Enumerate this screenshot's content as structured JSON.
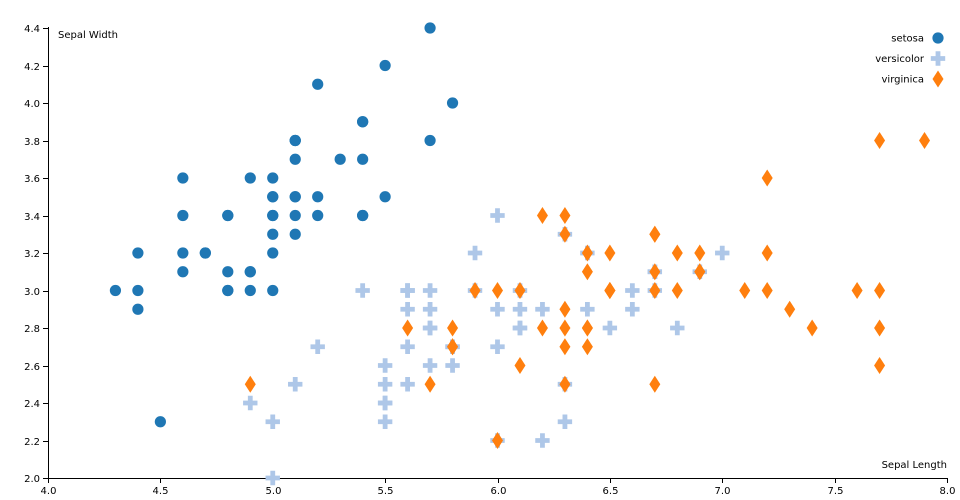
{
  "chart_data": {
    "type": "scatter",
    "title": "",
    "xlabel": "Sepal Length",
    "ylabel": "Sepal Width",
    "xlim": [
      4.0,
      8.0
    ],
    "ylim": [
      2.0,
      4.4
    ],
    "xticks": [
      "4.0",
      "4.5",
      "5.0",
      "5.5",
      "6.0",
      "6.5",
      "7.0",
      "7.5",
      "8.0"
    ],
    "yticks": [
      "2.0",
      "2.2",
      "2.4",
      "2.6",
      "2.8",
      "3.0",
      "3.2",
      "3.4",
      "3.6",
      "3.8",
      "4.0",
      "4.2",
      "4.4"
    ],
    "grid": false,
    "legend_position": "top-right",
    "series": [
      {
        "name": "setosa",
        "color": "#1f77b4",
        "marker": "circle",
        "points": [
          [
            5.1,
            3.5
          ],
          [
            4.9,
            3.0
          ],
          [
            4.7,
            3.2
          ],
          [
            4.6,
            3.1
          ],
          [
            5.0,
            3.6
          ],
          [
            5.4,
            3.9
          ],
          [
            4.6,
            3.4
          ],
          [
            5.0,
            3.4
          ],
          [
            4.4,
            2.9
          ],
          [
            4.9,
            3.1
          ],
          [
            5.4,
            3.7
          ],
          [
            4.8,
            3.4
          ],
          [
            4.8,
            3.0
          ],
          [
            4.3,
            3.0
          ],
          [
            5.8,
            4.0
          ],
          [
            5.7,
            4.4
          ],
          [
            5.4,
            3.9
          ],
          [
            5.1,
            3.5
          ],
          [
            5.7,
            3.8
          ],
          [
            5.1,
            3.8
          ],
          [
            5.4,
            3.4
          ],
          [
            5.1,
            3.7
          ],
          [
            4.6,
            3.6
          ],
          [
            5.1,
            3.3
          ],
          [
            4.8,
            3.4
          ],
          [
            5.0,
            3.0
          ],
          [
            5.0,
            3.4
          ],
          [
            5.2,
            3.5
          ],
          [
            5.2,
            3.4
          ],
          [
            4.7,
            3.2
          ],
          [
            4.8,
            3.1
          ],
          [
            5.4,
            3.4
          ],
          [
            5.2,
            4.1
          ],
          [
            5.5,
            4.2
          ],
          [
            4.9,
            3.1
          ],
          [
            5.0,
            3.2
          ],
          [
            5.5,
            3.5
          ],
          [
            4.9,
            3.6
          ],
          [
            4.4,
            3.0
          ],
          [
            5.1,
            3.4
          ],
          [
            5.0,
            3.5
          ],
          [
            4.5,
            2.3
          ],
          [
            4.4,
            3.2
          ],
          [
            5.0,
            3.5
          ],
          [
            5.1,
            3.8
          ],
          [
            4.8,
            3.0
          ],
          [
            5.1,
            3.8
          ],
          [
            4.6,
            3.2
          ],
          [
            5.3,
            3.7
          ],
          [
            5.0,
            3.3
          ]
        ]
      },
      {
        "name": "versicolor",
        "color": "#aec7e8",
        "marker": "cross",
        "points": [
          [
            7.0,
            3.2
          ],
          [
            6.4,
            3.2
          ],
          [
            6.9,
            3.1
          ],
          [
            5.5,
            2.3
          ],
          [
            6.5,
            2.8
          ],
          [
            5.7,
            2.8
          ],
          [
            6.3,
            3.3
          ],
          [
            4.9,
            2.4
          ],
          [
            6.6,
            2.9
          ],
          [
            5.2,
            2.7
          ],
          [
            5.0,
            2.0
          ],
          [
            5.9,
            3.0
          ],
          [
            6.0,
            2.2
          ],
          [
            6.1,
            2.9
          ],
          [
            5.6,
            2.9
          ],
          [
            6.7,
            3.1
          ],
          [
            5.6,
            3.0
          ],
          [
            5.8,
            2.7
          ],
          [
            6.2,
            2.2
          ],
          [
            5.6,
            2.5
          ],
          [
            5.9,
            3.2
          ],
          [
            6.1,
            2.8
          ],
          [
            6.3,
            2.5
          ],
          [
            6.1,
            2.8
          ],
          [
            6.4,
            2.9
          ],
          [
            6.6,
            3.0
          ],
          [
            6.8,
            2.8
          ],
          [
            6.7,
            3.0
          ],
          [
            6.0,
            2.9
          ],
          [
            5.7,
            2.6
          ],
          [
            5.5,
            2.4
          ],
          [
            5.5,
            2.4
          ],
          [
            5.8,
            2.7
          ],
          [
            6.0,
            2.7
          ],
          [
            5.4,
            3.0
          ],
          [
            6.0,
            3.4
          ],
          [
            6.7,
            3.1
          ],
          [
            6.3,
            2.3
          ],
          [
            5.6,
            3.0
          ],
          [
            5.5,
            2.5
          ],
          [
            5.5,
            2.6
          ],
          [
            6.1,
            3.0
          ],
          [
            5.8,
            2.6
          ],
          [
            5.0,
            2.3
          ],
          [
            5.6,
            2.7
          ],
          [
            5.7,
            3.0
          ],
          [
            5.7,
            2.9
          ],
          [
            6.2,
            2.9
          ],
          [
            5.1,
            2.5
          ],
          [
            5.7,
            2.8
          ]
        ]
      },
      {
        "name": "virginica",
        "color": "#ff7f0e",
        "marker": "diamond",
        "points": [
          [
            6.3,
            3.3
          ],
          [
            5.8,
            2.7
          ],
          [
            7.1,
            3.0
          ],
          [
            6.3,
            2.9
          ],
          [
            6.5,
            3.0
          ],
          [
            7.6,
            3.0
          ],
          [
            4.9,
            2.5
          ],
          [
            7.3,
            2.9
          ],
          [
            6.7,
            2.5
          ],
          [
            7.2,
            3.6
          ],
          [
            6.5,
            3.2
          ],
          [
            6.4,
            2.7
          ],
          [
            6.8,
            3.0
          ],
          [
            5.7,
            2.5
          ],
          [
            5.8,
            2.8
          ],
          [
            6.4,
            3.2
          ],
          [
            6.5,
            3.0
          ],
          [
            7.7,
            3.8
          ],
          [
            7.7,
            2.6
          ],
          [
            6.0,
            2.2
          ],
          [
            6.9,
            3.2
          ],
          [
            5.6,
            2.8
          ],
          [
            7.7,
            2.8
          ],
          [
            6.3,
            2.7
          ],
          [
            6.7,
            3.3
          ],
          [
            7.2,
            3.2
          ],
          [
            6.2,
            2.8
          ],
          [
            6.1,
            3.0
          ],
          [
            6.4,
            2.8
          ],
          [
            7.2,
            3.0
          ],
          [
            7.4,
            2.8
          ],
          [
            7.9,
            3.8
          ],
          [
            6.4,
            2.8
          ],
          [
            6.3,
            2.8
          ],
          [
            6.1,
            2.6
          ],
          [
            7.7,
            3.0
          ],
          [
            6.3,
            3.4
          ],
          [
            6.4,
            3.1
          ],
          [
            6.0,
            3.0
          ],
          [
            6.9,
            3.1
          ],
          [
            6.7,
            3.1
          ],
          [
            6.9,
            3.1
          ],
          [
            5.8,
            2.7
          ],
          [
            6.8,
            3.2
          ],
          [
            6.7,
            3.3
          ],
          [
            6.7,
            3.0
          ],
          [
            6.3,
            2.5
          ],
          [
            6.5,
            3.0
          ],
          [
            6.2,
            3.4
          ],
          [
            5.9,
            3.0
          ]
        ]
      }
    ]
  }
}
